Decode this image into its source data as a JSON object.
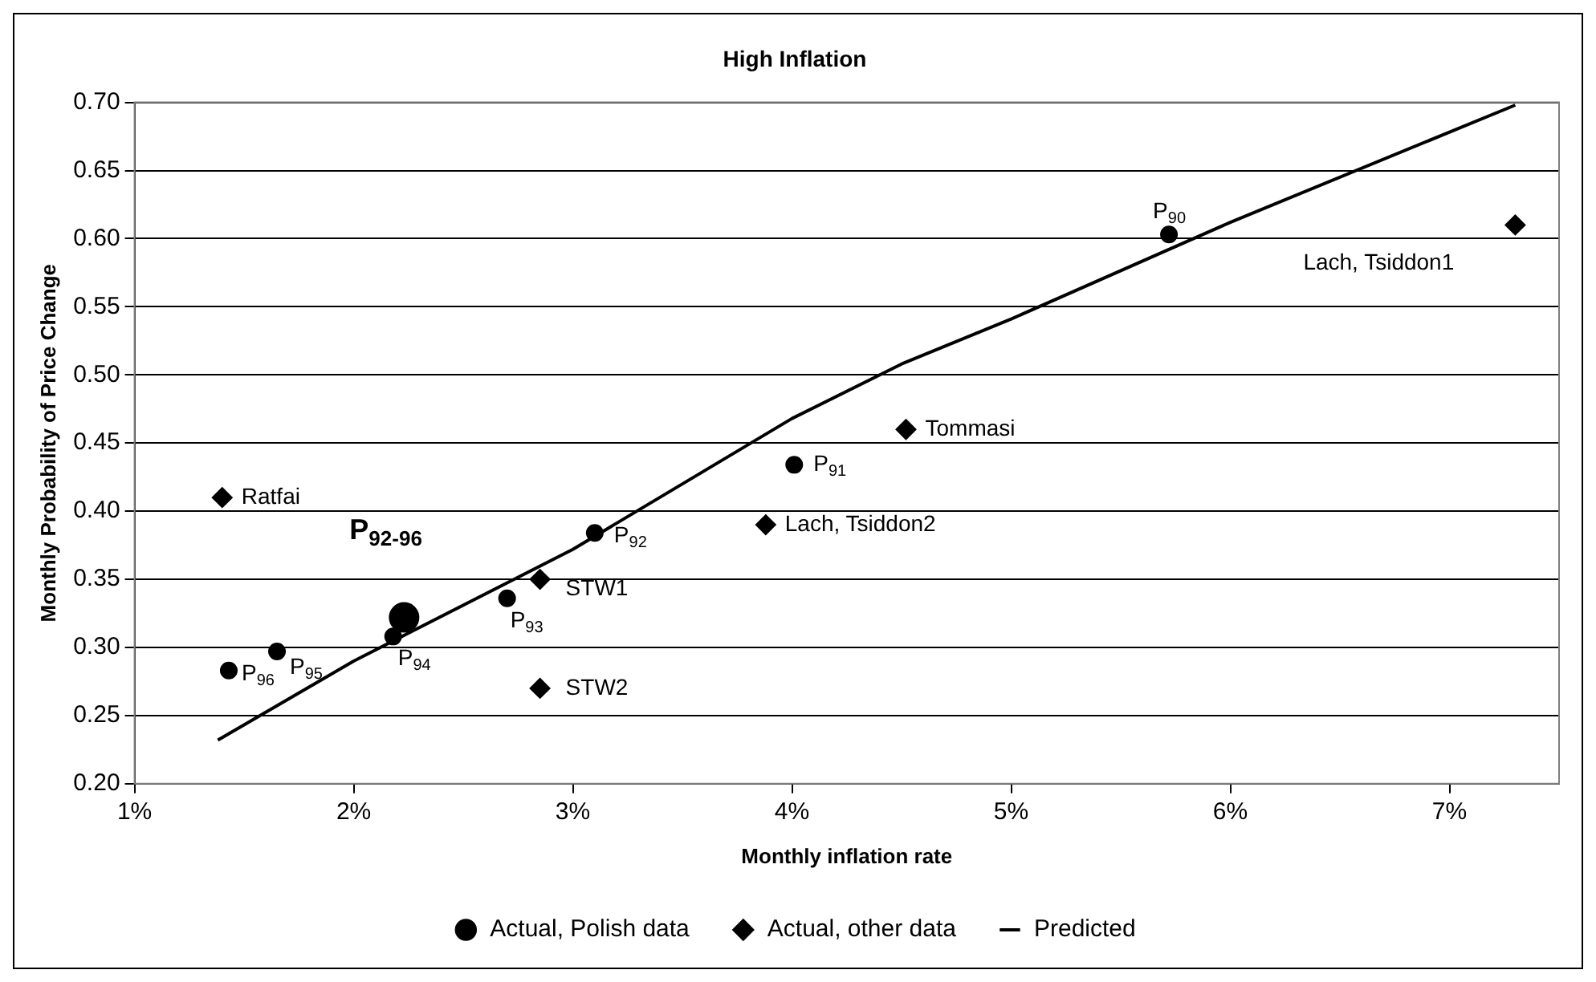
{
  "chart_data": {
    "type": "scatter",
    "title": "High Inflation",
    "xlabel": "Monthly inflation rate",
    "ylabel": "Monthly Probability of Price Change",
    "xlim": [
      1,
      7.5
    ],
    "xticks": [
      {
        "value": 1,
        "label": "1%"
      },
      {
        "value": 2,
        "label": "2%"
      },
      {
        "value": 3,
        "label": "3%"
      },
      {
        "value": 4,
        "label": "4%"
      },
      {
        "value": 5,
        "label": "5%"
      },
      {
        "value": 6,
        "label": "6%"
      },
      {
        "value": 7,
        "label": "7%"
      }
    ],
    "ylim": [
      0.2,
      0.7
    ],
    "yticks": [
      {
        "value": 0.2,
        "label": "0.20"
      },
      {
        "value": 0.25,
        "label": "0.25"
      },
      {
        "value": 0.3,
        "label": "0.30"
      },
      {
        "value": 0.35,
        "label": "0.35"
      },
      {
        "value": 0.4,
        "label": "0.40"
      },
      {
        "value": 0.45,
        "label": "0.45"
      },
      {
        "value": 0.5,
        "label": "0.50"
      },
      {
        "value": 0.55,
        "label": "0.55"
      },
      {
        "value": 0.6,
        "label": "0.60"
      },
      {
        "value": 0.65,
        "label": "0.65"
      },
      {
        "value": 0.7,
        "label": "0.70"
      }
    ],
    "grid": "y",
    "legend": "bottom",
    "series": [
      {
        "name": "Actual, Polish data",
        "type": "scatter",
        "marker": "circle",
        "color": "#000000",
        "x": [
          5.72,
          4.01,
          3.1,
          2.7,
          2.18,
          1.65,
          1.43
        ],
        "values": [
          0.603,
          0.434,
          0.384,
          0.336,
          0.308,
          0.297,
          0.283
        ]
      },
      {
        "type": "scatter",
        "marker": "circle",
        "color": "#000000",
        "x": [
          2.23
        ],
        "values": [
          0.322
        ]
      },
      {
        "name": "Actual, other data",
        "type": "scatter",
        "marker": "diamond",
        "color": "#000000",
        "x": [
          1.4,
          2.85,
          2.85,
          3.88,
          4.52,
          7.3
        ],
        "values": [
          0.41,
          0.35,
          0.27,
          0.39,
          0.46,
          0.61
        ]
      },
      {
        "name": "Predicted",
        "type": "line",
        "marker": "none",
        "line_style": "solid",
        "color": "#000000",
        "x": [
          1.38,
          2.0,
          3.0,
          4.0,
          4.5,
          5.0,
          6.0,
          7.3
        ],
        "values": [
          0.232,
          0.29,
          0.372,
          0.468,
          0.508,
          0.541,
          0.612,
          0.698
        ]
      }
    ],
    "annotations": [
      {
        "text": "P$_{90}$",
        "x": 5.72,
        "y": 0.603
      },
      {
        "text": "P$_{91}$",
        "x": 4.01,
        "y": 0.434
      },
      {
        "text": "P$_{92}$",
        "x": 3.1,
        "y": 0.384
      },
      {
        "text": "P$_{93}$",
        "x": 2.7,
        "y": 0.336
      },
      {
        "text": "P$_{94}$",
        "x": 2.18,
        "y": 0.308
      },
      {
        "text": "P$_{95}$",
        "x": 1.65,
        "y": 0.297
      },
      {
        "text": "P$_{96}$",
        "x": 1.43,
        "y": 0.283
      },
      {
        "text": "P$_{92-96}$",
        "x": 2.23,
        "y": 0.322
      },
      {
        "text": "Ratfai",
        "x": 1.4,
        "y": 0.41
      },
      {
        "text": "STW1",
        "x": 2.85,
        "y": 0.35
      },
      {
        "text": "STW2",
        "x": 2.85,
        "y": 0.27
      },
      {
        "text": "Lach, Tsiddon2",
        "x": 3.88,
        "y": 0.39
      },
      {
        "text": "Tommasi",
        "x": 4.52,
        "y": 0.46
      },
      {
        "text": "Lach, Tsiddon1",
        "x": 7.3,
        "y": 0.61
      }
    ]
  }
}
